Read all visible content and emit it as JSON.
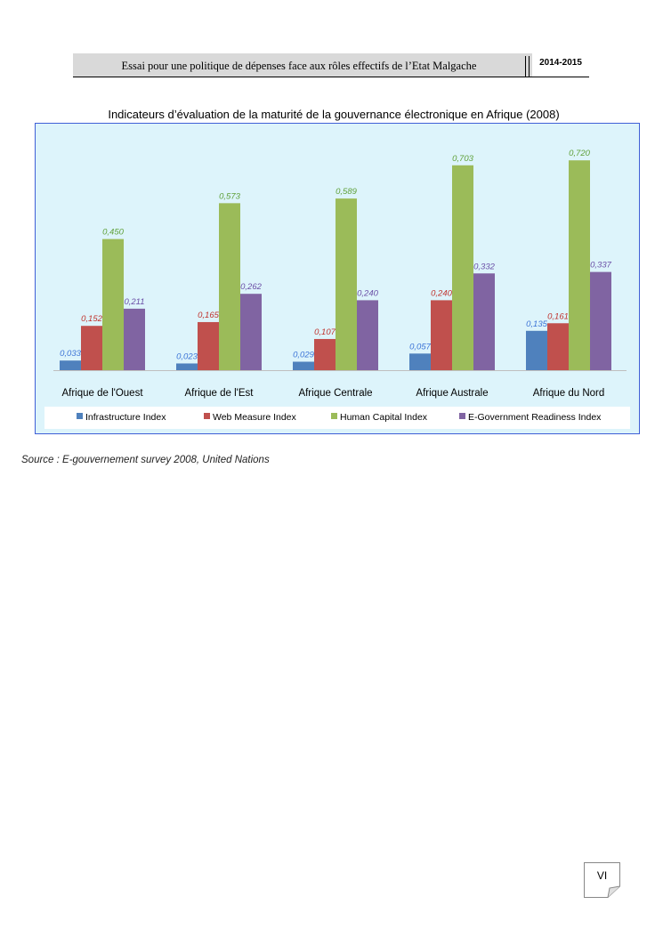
{
  "header": {
    "title": "Essai pour une politique de dépenses face aux rôles effectifs de l’Etat Malgache",
    "year": "2014-2015"
  },
  "figure": {
    "title": "Indicateurs d’évaluation de la maturité de la gouvernance électronique en Afrique (2008)",
    "source": "Source : E-gouvernement survey 2008, United Nations"
  },
  "page_number": "VI",
  "chart_data": {
    "type": "bar",
    "categories": [
      "Afrique de l'Ouest",
      "Afrique de l'Est",
      "Afrique Centrale",
      "Afrique Australe",
      "Afrique du Nord"
    ],
    "series": [
      {
        "name": "Infrastructure Index",
        "color": "#4f81bd",
        "values": [
          0.033,
          0.023,
          0.029,
          0.057,
          0.135
        ],
        "labels": [
          "0,033",
          "0,023",
          "0,029",
          "0,057",
          "0,135"
        ]
      },
      {
        "name": "Web Measure Index",
        "color": "#c0504d",
        "values": [
          0.152,
          0.165,
          0.107,
          0.24,
          0.161
        ],
        "labels": [
          "0,152",
          "0,165",
          "0,107",
          "0,240",
          "0,161"
        ]
      },
      {
        "name": "Human Capital Index",
        "color": "#9bbb59",
        "values": [
          0.45,
          0.573,
          0.589,
          0.703,
          0.72
        ],
        "labels": [
          "0,450",
          "0,573",
          "0,589",
          "0,703",
          "0,720"
        ]
      },
      {
        "name": "E-Government Readiness Index",
        "color": "#8064a2",
        "values": [
          0.211,
          0.262,
          0.24,
          0.332,
          0.337
        ],
        "labels": [
          "0,211",
          "0,262",
          "0,240",
          "0,332",
          "0,337"
        ]
      }
    ],
    "label_colors": [
      "#3b73d6",
      "#c0332e",
      "#5fa039",
      "#6a4ea6"
    ],
    "legend_position": "bottom",
    "grid": false,
    "ylim": [
      0,
      0.8
    ]
  }
}
